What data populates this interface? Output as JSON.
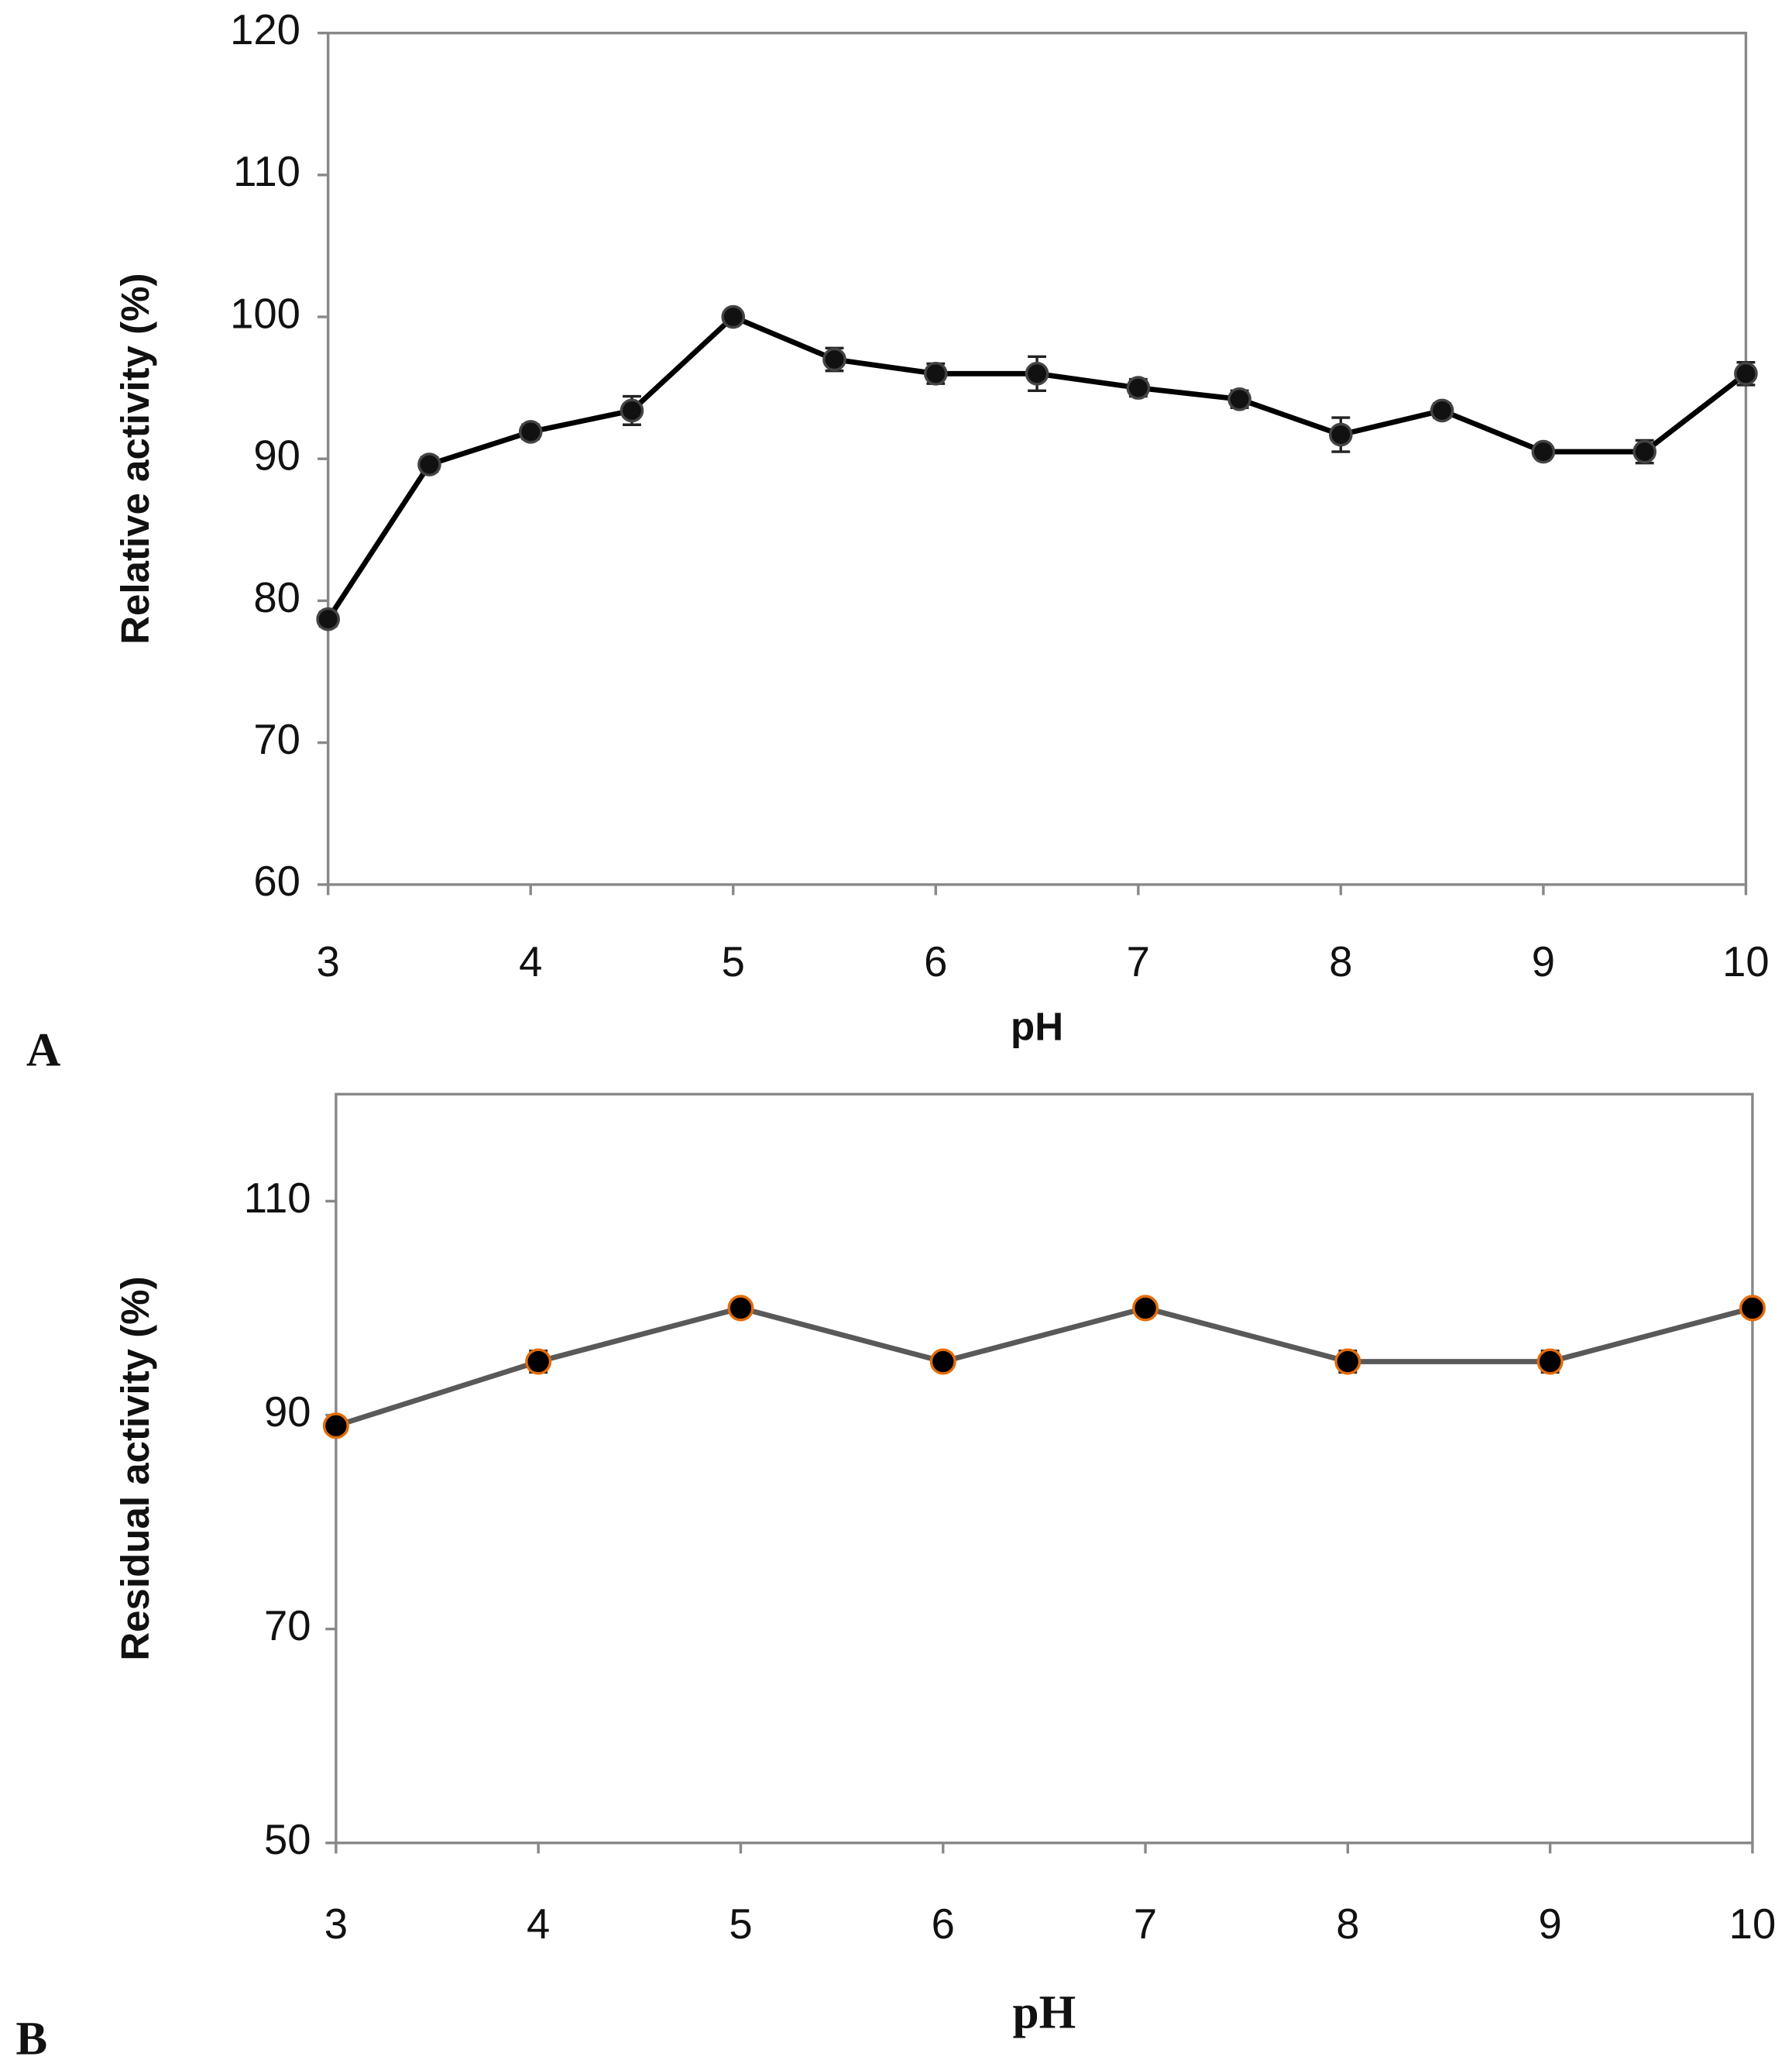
{
  "chart_data": [
    {
      "type": "line",
      "label": "A",
      "x_label": "pH",
      "y_label": "Relative activity (%)",
      "x": [
        3,
        3.5,
        4,
        4.5,
        5,
        5.5,
        6,
        6.5,
        7,
        7.5,
        8,
        8.5,
        9,
        9.5,
        10
      ],
      "values": [
        78.7,
        89.6,
        91.9,
        93.4,
        100,
        97,
        96,
        96,
        95,
        94.2,
        91.7,
        93.4,
        90.5,
        90.5,
        96
      ],
      "errors": [
        0.5,
        0.5,
        0.5,
        1,
        0.4,
        0.8,
        0.7,
        1.2,
        0.6,
        0.6,
        1.2,
        0.5,
        0.4,
        0.8,
        0.8
      ],
      "color": "#000000",
      "marker_color": "#111111",
      "marker_edge": "#444444",
      "xlim": [
        3,
        10
      ],
      "xticks": [
        3,
        4,
        5,
        6,
        7,
        8,
        9,
        10
      ],
      "ylim": [
        60,
        120
      ],
      "yticks": [
        60,
        70,
        80,
        90,
        100,
        110,
        120
      ],
      "grid": false
    },
    {
      "type": "line",
      "label": "B",
      "x_label": "pH",
      "y_label": "Residual activity (%)",
      "x": [
        3,
        4,
        5,
        6,
        7,
        8,
        9,
        10
      ],
      "values": [
        89,
        95,
        100,
        95,
        100,
        95,
        95,
        100
      ],
      "errors": [
        0.4,
        1,
        0.4,
        0.4,
        0.4,
        1,
        1,
        0.4
      ],
      "color": "#595959",
      "marker_color": "#000000",
      "marker_edge": "#e46c0a",
      "xlim": [
        3,
        10
      ],
      "xticks": [
        3,
        4,
        5,
        6,
        7,
        8,
        9,
        10
      ],
      "ylim": [
        50,
        120
      ],
      "yticks": [
        50,
        70,
        90,
        110
      ],
      "grid": false
    }
  ]
}
